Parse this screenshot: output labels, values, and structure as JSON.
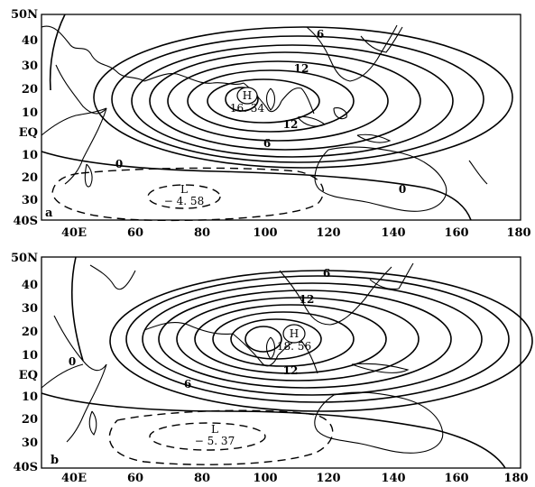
{
  "panels": [
    {
      "tag": "a",
      "high": {
        "label": "H",
        "value": "16. 34"
      },
      "low": {
        "label": "L",
        "value": "− 4. 58"
      },
      "contour_labels": [
        "6",
        "12",
        "12",
        "6",
        "0",
        "0"
      ]
    },
    {
      "tag": "b",
      "high": {
        "label": "H",
        "value": "18. 56"
      },
      "low": {
        "label": "L",
        "value": "− 5. 37"
      },
      "contour_labels": [
        "6",
        "12",
        "12",
        "6",
        "0"
      ]
    }
  ],
  "axes": {
    "lat_ticks": [
      "50N",
      "40",
      "30",
      "20",
      "10",
      "EQ",
      "10",
      "20",
      "30",
      "40S"
    ],
    "lon_ticks": [
      "40E",
      "60",
      "80",
      "100",
      "120",
      "140",
      "160",
      "180"
    ]
  }
}
